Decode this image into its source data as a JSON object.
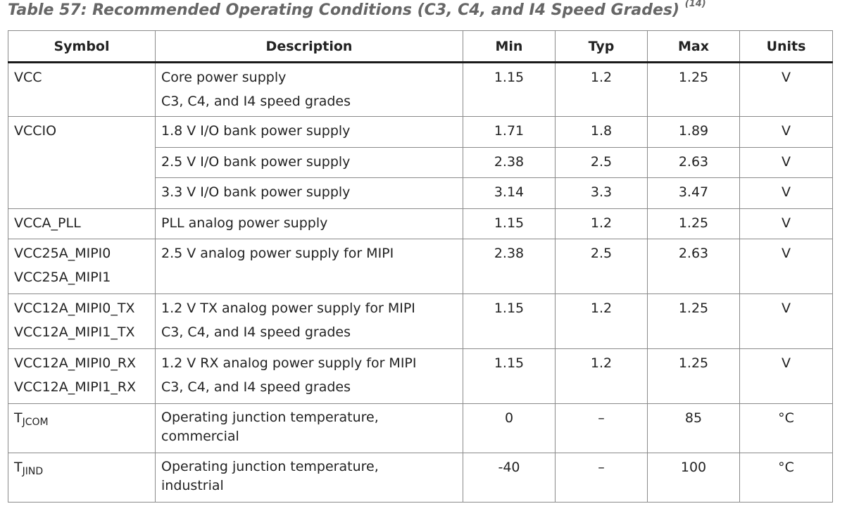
{
  "caption": {
    "text": "Table 57: Recommended Operating Conditions (C3, C4, and I4 Speed Grades)",
    "footnote": "(14)"
  },
  "headers": [
    "Symbol",
    "Description",
    "Min",
    "Typ",
    "Max",
    "Units"
  ],
  "rows": [
    {
      "symbol": [
        "VCC"
      ],
      "description": [
        "Core power supply",
        "C3, C4, and I4 speed grades"
      ],
      "min": "1.15",
      "typ": "1.2",
      "max": "1.25",
      "units": "V"
    },
    {
      "symbol": [
        "VCCIO"
      ],
      "description": [
        "1.8 V I/O bank power supply"
      ],
      "min": "1.71",
      "typ": "1.8",
      "max": "1.89",
      "units": "V"
    },
    {
      "description": [
        "2.5 V I/O bank power supply"
      ],
      "min": "2.38",
      "typ": "2.5",
      "max": "2.63",
      "units": "V"
    },
    {
      "description": [
        "3.3 V I/O bank power supply"
      ],
      "min": "3.14",
      "typ": "3.3",
      "max": "3.47",
      "units": "V"
    },
    {
      "symbol": [
        "VCCA_PLL"
      ],
      "description": [
        "PLL analog power supply"
      ],
      "min": "1.15",
      "typ": "1.2",
      "max": "1.25",
      "units": "V"
    },
    {
      "symbol": [
        "VCC25A_MIPI0",
        "VCC25A_MIPI1"
      ],
      "description": [
        "2.5 V analog power supply for MIPI"
      ],
      "min": "2.38",
      "typ": "2.5",
      "max": "2.63",
      "units": "V"
    },
    {
      "symbol": [
        "VCC12A_MIPI0_TX",
        "VCC12A_MIPI1_TX"
      ],
      "description": [
        "1.2 V TX analog power supply for MIPI",
        "C3, C4, and I4 speed grades"
      ],
      "min": "1.15",
      "typ": "1.2",
      "max": "1.25",
      "units": "V"
    },
    {
      "symbol": [
        "VCC12A_MIPI0_RX",
        "VCC12A_MIPI1_RX"
      ],
      "description": [
        "1.2 V RX analog power supply for MIPI",
        "C3, C4, and I4 speed grades"
      ],
      "min": "1.15",
      "typ": "1.2",
      "max": "1.25",
      "units": "V"
    },
    {
      "symbol_main": "T",
      "symbol_sub": "JCOM",
      "description": [
        "Operating junction temperature,",
        "commercial"
      ],
      "min": "0",
      "typ": "–",
      "max": "85",
      "units": "°C"
    },
    {
      "symbol_main": "T",
      "symbol_sub": "JIND",
      "description": [
        "Operating junction temperature,",
        "industrial"
      ],
      "min": "-40",
      "typ": "–",
      "max": "100",
      "units": "°C"
    }
  ]
}
